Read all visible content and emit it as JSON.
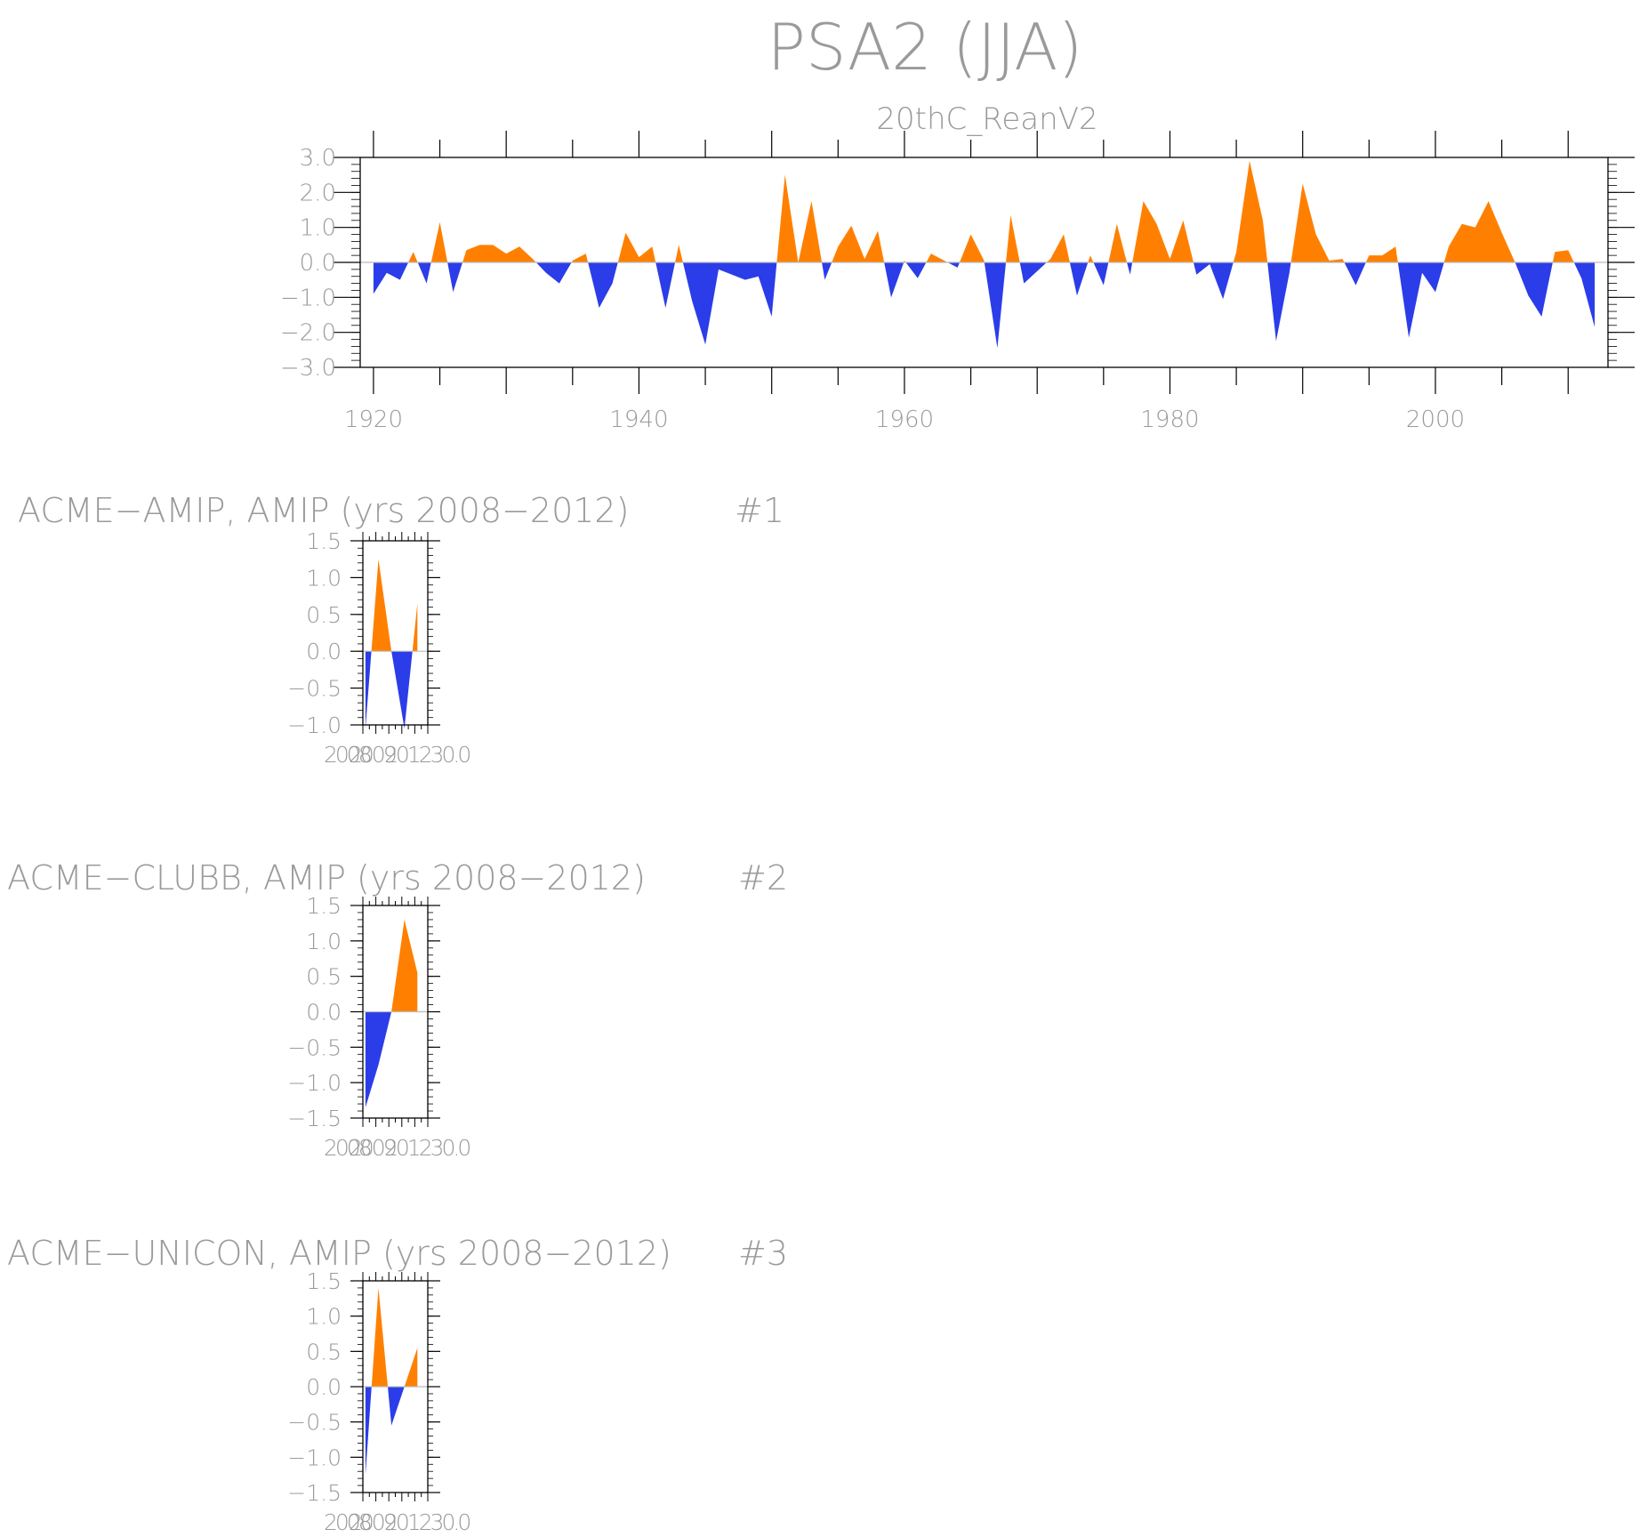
{
  "main_title": "PSA2 (JJA)",
  "colors": {
    "positive": "#ff8000",
    "negative": "#2b3de8",
    "axis": "#000000",
    "text": "#9a9a9a"
  },
  "chart_data": [
    {
      "type": "area",
      "title": "20thC_ReanV2",
      "xlabel": "",
      "ylabel": "",
      "xlim": [
        1919,
        2013
      ],
      "ylim": [
        -3,
        3
      ],
      "x_ticks": [
        1920,
        1940,
        1960,
        1980,
        2000
      ],
      "x_tick_labels": [
        "1920",
        "1940",
        "1960",
        "1980",
        "2000"
      ],
      "y_ticks": [
        3,
        2,
        1,
        0,
        -1,
        -2,
        -3
      ],
      "y_tick_labels": [
        "3.0",
        "2.0",
        "1.0",
        "0.0",
        "−1.0",
        "−2.0",
        "−3.0"
      ],
      "grid": false,
      "x": [
        1920,
        1921,
        1922,
        1923,
        1924,
        1925,
        1926,
        1927,
        1928,
        1929,
        1930,
        1931,
        1932,
        1933,
        1934,
        1935,
        1936,
        1937,
        1938,
        1939,
        1940,
        1941,
        1942,
        1943,
        1944,
        1945,
        1946,
        1947,
        1948,
        1949,
        1950,
        1951,
        1952,
        1953,
        1954,
        1955,
        1956,
        1957,
        1958,
        1959,
        1960,
        1961,
        1962,
        1963,
        1964,
        1965,
        1966,
        1967,
        1968,
        1969,
        1970,
        1971,
        1972,
        1973,
        1974,
        1975,
        1976,
        1977,
        1978,
        1979,
        1980,
        1981,
        1982,
        1983,
        1984,
        1985,
        1986,
        1987,
        1988,
        1989,
        1990,
        1991,
        1992,
        1993,
        1994,
        1995,
        1996,
        1997,
        1998,
        1999,
        2000,
        2001,
        2002,
        2003,
        2004,
        2005,
        2006,
        2007,
        2008,
        2009,
        2010,
        2011,
        2012
      ],
      "values": [
        -0.9,
        -0.3,
        -0.5,
        0.3,
        -0.6,
        1.15,
        -0.85,
        0.35,
        0.5,
        0.5,
        0.25,
        0.45,
        0.1,
        -0.3,
        -0.6,
        0.05,
        0.25,
        -1.3,
        -0.6,
        0.85,
        0.15,
        0.45,
        -1.3,
        0.5,
        -1.1,
        -2.35,
        -0.2,
        -0.35,
        -0.5,
        -0.4,
        -1.55,
        2.5,
        0.0,
        1.75,
        -0.5,
        0.45,
        1.05,
        0.1,
        0.9,
        -1.0,
        0.05,
        -0.45,
        0.25,
        0.05,
        -0.15,
        0.8,
        0.05,
        -2.45,
        1.35,
        -0.6,
        -0.25,
        0.1,
        0.8,
        -0.95,
        0.2,
        -0.65,
        1.1,
        -0.35,
        1.75,
        1.1,
        0.1,
        1.2,
        -0.35,
        -0.05,
        -1.05,
        0.3,
        2.9,
        1.2,
        -2.25,
        -0.3,
        2.25,
        0.8,
        0.05,
        0.1,
        -0.65,
        0.2,
        0.2,
        0.45,
        -2.15,
        -0.3,
        -0.85,
        0.45,
        1.1,
        1.0,
        1.75,
        0.85,
        0.0,
        -0.95,
        -1.55,
        0.3,
        0.35,
        -0.45,
        -1.85
      ]
    },
    {
      "type": "area",
      "title": "ACME−AMIP, AMIP (yrs 2008−2012)",
      "panel_id": "#1",
      "xlim": [
        2007.8,
        2012.8
      ],
      "ylim": [
        -1.0,
        1.5
      ],
      "y_ticks": [
        1.5,
        1.0,
        0.5,
        0.0,
        -0.5,
        -1.0
      ],
      "y_tick_labels": [
        "1.5",
        "1.0",
        "0.5",
        "0.0",
        "−0.5",
        "−1.0"
      ],
      "x_tick_text": "2008",
      "x_tick_overlap_text": "2009",
      "x_tick_extra_text": "201230.0",
      "x": [
        2008,
        2009,
        2010,
        2011,
        2012
      ],
      "values": [
        -1.05,
        1.25,
        0.0,
        -1.05,
        0.65
      ]
    },
    {
      "type": "area",
      "title": "ACME−CLUBB, AMIP (yrs 2008−2012)",
      "panel_id": "#2",
      "xlim": [
        2007.8,
        2012.8
      ],
      "ylim": [
        -1.5,
        1.5
      ],
      "y_ticks": [
        1.5,
        1.0,
        0.5,
        0.0,
        -0.5,
        -1.0,
        -1.5
      ],
      "y_tick_labels": [
        "1.5",
        "1.0",
        "0.5",
        "0.0",
        "−0.5",
        "−1.0",
        "−1.5"
      ],
      "x_tick_text": "2008",
      "x_tick_overlap_text": "2009",
      "x_tick_extra_text": "201230.0",
      "x": [
        2008,
        2009,
        2010,
        2011,
        2012
      ],
      "values": [
        -1.35,
        -0.75,
        0.0,
        1.3,
        0.55
      ]
    },
    {
      "type": "area",
      "title": "ACME−UNICON, AMIP (yrs 2008−2012)",
      "panel_id": "#3",
      "xlim": [
        2007.8,
        2012.8
      ],
      "ylim": [
        -1.5,
        1.5
      ],
      "y_ticks": [
        1.5,
        1.0,
        0.5,
        0.0,
        -0.5,
        -1.0,
        -1.5
      ],
      "y_tick_labels": [
        "1.5",
        "1.0",
        "0.5",
        "0.0",
        "−0.5",
        "−1.0",
        "−1.5"
      ],
      "x_tick_text": "2008",
      "x_tick_overlap_text": "2009",
      "x_tick_extra_text": "201230.0",
      "x": [
        2008,
        2009,
        2010,
        2011,
        2012
      ],
      "values": [
        -1.25,
        1.4,
        -0.55,
        0.0,
        0.55
      ]
    }
  ]
}
